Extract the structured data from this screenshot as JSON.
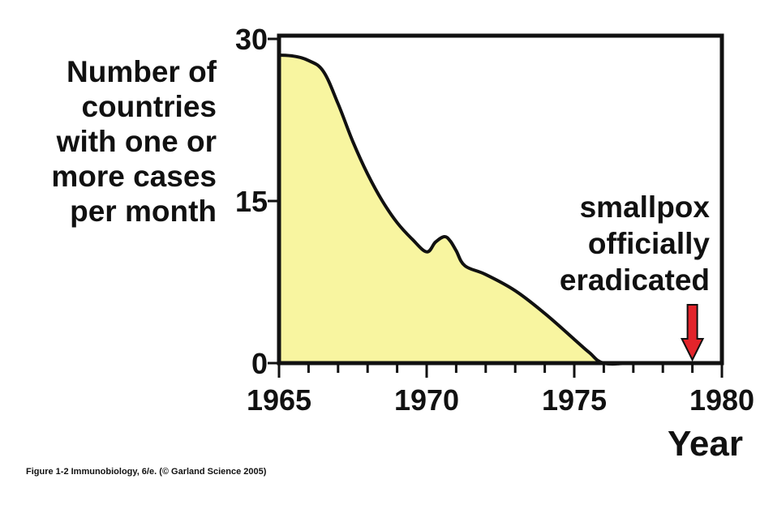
{
  "chart_data": {
    "type": "area",
    "ylabel": [
      "Number of",
      "countries",
      "with one or",
      "more cases",
      "per month"
    ],
    "xlabel": "Year",
    "x_ticks": [
      1965,
      1970,
      1975,
      1980
    ],
    "y_ticks": [
      0,
      15,
      30
    ],
    "xlim": [
      1965,
      1980
    ],
    "ylim": [
      0,
      30
    ],
    "fill_color": "#f8f5a0",
    "line_color": "#111111",
    "grid": false,
    "series": [
      {
        "x": [
          1965,
          1965.5,
          1966,
          1966.5,
          1967,
          1967.5,
          1968,
          1968.5,
          1969,
          1969.5,
          1970,
          1970.3,
          1970.6,
          1970.8,
          1971,
          1971.3,
          1972,
          1973,
          1974,
          1975,
          1975.5,
          1976,
          1977,
          1978,
          1979,
          1980
        ],
        "y": [
          28.5,
          28.4,
          28.0,
          27.0,
          24.0,
          20.5,
          17.5,
          15.0,
          13.0,
          11.5,
          10.3,
          11.2,
          11.7,
          11.3,
          10.4,
          9.0,
          8.2,
          6.7,
          4.6,
          2.2,
          1.0,
          0.0,
          0.0,
          0.0,
          0.0,
          0.0
        ]
      }
    ],
    "annotations": [
      {
        "text": [
          "smallpox",
          "officially",
          "eradicated"
        ],
        "x": 1979,
        "arrow_color": "#e3242b"
      }
    ]
  },
  "caption": "Figure 1-2  Immunobiology, 6/e. (© Garland Science 2005)"
}
